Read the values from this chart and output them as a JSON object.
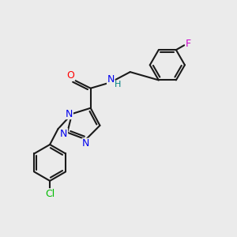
{
  "bg_color": "#ebebeb",
  "bond_color": "#1a1a1a",
  "bond_width": 1.5,
  "atom_colors": {
    "N": "#0000ee",
    "O": "#ff0000",
    "Cl": "#00bb00",
    "F": "#cc00cc",
    "H": "#008080"
  },
  "font_size": 9,
  "fig_width": 3.0,
  "fig_height": 3.0,
  "dpi": 100
}
